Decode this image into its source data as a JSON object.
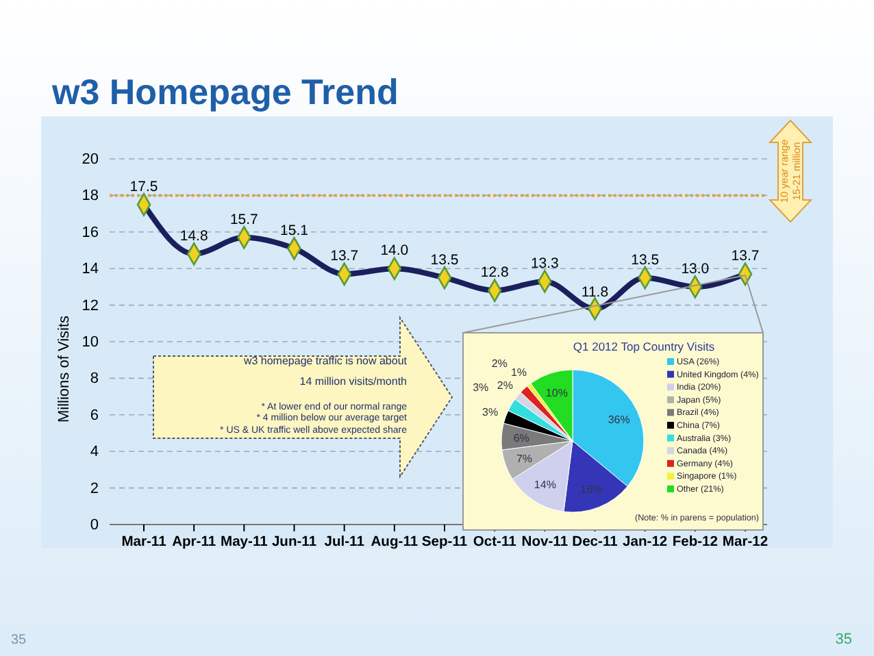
{
  "chart_data": [
    {
      "type": "line",
      "title": "w3 Homepage Trend",
      "ylabel": "Millions of Visits",
      "categories": [
        "Mar-11",
        "Apr-11",
        "May-11",
        "Jun-11",
        "Jul-11",
        "Aug-11",
        "Sep-11",
        "Oct-11",
        "Nov-11",
        "Dec-11",
        "Jan-12",
        "Feb-12",
        "Mar-12"
      ],
      "series": [
        {
          "color": "#1b1f5c",
          "values": [
            17.5,
            14.8,
            15.7,
            15.1,
            13.7,
            14.0,
            13.5,
            12.8,
            13.3,
            11.8,
            13.5,
            13.0,
            13.7
          ],
          "value_labels": [
            "17.5",
            "14.8",
            "15.7",
            "15.1",
            "13.7",
            "14.0",
            "13.5",
            "12.8",
            "13.3",
            "11.8",
            "13.5",
            "13.0",
            "13.7"
          ]
        }
      ],
      "ylim": [
        0,
        20
      ],
      "yticks": [
        0,
        2,
        4,
        6,
        8,
        10,
        12,
        14,
        16,
        18,
        20
      ],
      "grid": "y",
      "marker": "diamond",
      "line_style": "solid",
      "ref_lines": [
        {
          "axis": "y",
          "value": 18,
          "color": "#e0a040",
          "line_style": "dotted"
        }
      ],
      "annotations": [
        "w3 homepage traffic is now about",
        "14 million visits/month",
        "* At lower end of our normal range",
        "* 4 million below our average target",
        "* US & UK traffic well above expected share",
        "10 year range",
        "15-21 million",
        "35",
        "35"
      ]
    },
    {
      "type": "pie",
      "title": "Q1 2012 Top Country Visits",
      "categories": [
        "USA (26%)",
        "United Kingdom (4%)",
        "India (20%)",
        "Japan (5%)",
        "Brazil (4%)",
        "China (7%)",
        "Australia (3%)",
        "Canada (4%)",
        "Germany (4%)",
        "Singapore (1%)",
        "Other (21%)"
      ],
      "values": [
        36,
        16,
        14,
        7,
        6,
        3,
        3,
        2,
        2,
        1,
        10
      ],
      "value_labels": [
        "36%",
        "16%",
        "14%",
        "7%",
        "6%",
        "3%",
        "3%",
        "2%",
        "2%",
        "1%",
        "10%"
      ],
      "colors": [
        "#33c6ef",
        "#3535b8",
        "#cfcfee",
        "#b0b0b0",
        "#7a7a7a",
        "#000000",
        "#33dede",
        "#d4d4e4",
        "#dd2222",
        "#f0f040",
        "#22dd22"
      ],
      "legend": "right",
      "annotations": [
        "(Note:   % in parens = population)"
      ]
    }
  ]
}
